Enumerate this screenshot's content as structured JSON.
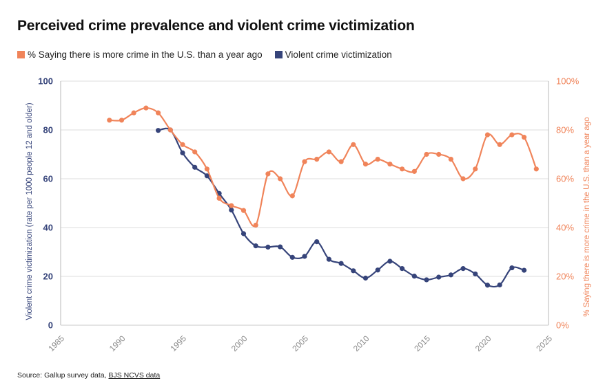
{
  "title": "Perceived crime prevalence and violent crime victimization",
  "legend": {
    "series_a": "% Saying there is more crime in the U.S. than a year ago",
    "series_b": "Violent crime victimization"
  },
  "source": {
    "prefix": "Source: Gallup survey data,",
    "link": "BJS NCVS data"
  },
  "colors": {
    "orange": "#f0845a",
    "navy": "#36447a",
    "grid": "#dcdcdc",
    "xtick": "#8a8a8a"
  },
  "chart_data": {
    "type": "line",
    "title": "Perceived crime prevalence and violent crime victimization",
    "grid": "horizontal",
    "legend_position": "top-left",
    "x_ticks": [
      "1985",
      "1990",
      "1995",
      "2000",
      "2005",
      "2010",
      "2015",
      "2020",
      "2025"
    ],
    "xlim": [
      1985,
      2025
    ],
    "y_left": {
      "label": "Violent crime victimization (rate per 1000 people 12 and older)",
      "ticks": [
        "0",
        "20",
        "40",
        "60",
        "80",
        "100"
      ],
      "lim": [
        0,
        100
      ]
    },
    "y_right": {
      "label": "% Saying there is more crime in the U.S. than a year ago",
      "ticks": [
        "0%",
        "20%",
        "40%",
        "60%",
        "80%",
        "100%"
      ],
      "lim": [
        0,
        100
      ]
    },
    "series": [
      {
        "name": "% Saying there is more crime in the U.S. than a year ago",
        "axis": "right",
        "x": [
          1989,
          1990,
          1991,
          1992,
          1993,
          1994,
          1995,
          1996,
          1997,
          1998,
          1999,
          2000,
          2001,
          2002,
          2003,
          2004,
          2005,
          2006,
          2007,
          2008,
          2009,
          2010,
          2011,
          2012,
          2013,
          2014,
          2015,
          2016,
          2017,
          2018,
          2019,
          2020,
          2021,
          2022,
          2023,
          2024
        ],
        "values": [
          84,
          84,
          87,
          89,
          87,
          80,
          74,
          71,
          64,
          52,
          49,
          47,
          41,
          62,
          60,
          53,
          67,
          68,
          71,
          67,
          74,
          66,
          68,
          66,
          64,
          63,
          70,
          70,
          68,
          60,
          64,
          78,
          74,
          78,
          77,
          64
        ]
      },
      {
        "name": "Violent crime victimization",
        "axis": "left",
        "x": [
          1993,
          1994,
          1995,
          1996,
          1997,
          1998,
          1999,
          2000,
          2001,
          2002,
          2003,
          2004,
          2005,
          2006,
          2007,
          2008,
          2009,
          2010,
          2011,
          2012,
          2013,
          2014,
          2015,
          2016,
          2017,
          2018,
          2019,
          2020,
          2021,
          2022,
          2023
        ],
        "values": [
          79.8,
          80,
          70.6,
          64.7,
          61.2,
          54,
          47.2,
          37.5,
          32.5,
          32,
          32.1,
          27.8,
          28.2,
          34.2,
          27,
          25.3,
          22.3,
          19.3,
          22.6,
          26.2,
          23.2,
          20.1,
          18.6,
          19.7,
          20.6,
          23.2,
          21,
          16.4,
          16.5,
          23.5,
          22.5
        ]
      }
    ]
  }
}
